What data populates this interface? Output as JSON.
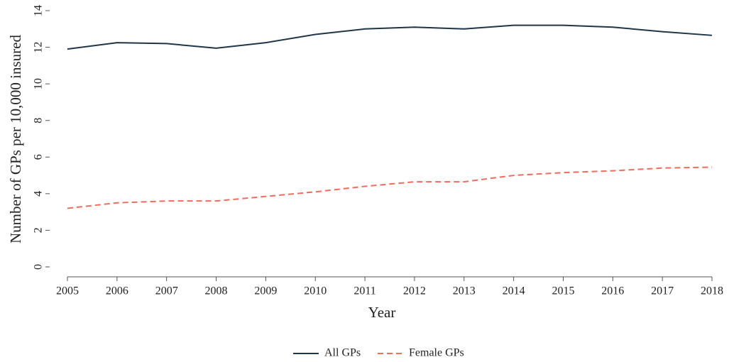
{
  "chart_data": {
    "type": "line",
    "x_label": "Year",
    "y_label": "Number of GPs per 10,000 insured",
    "x": [
      2005,
      2006,
      2007,
      2008,
      2009,
      2010,
      2011,
      2012,
      2013,
      2014,
      2015,
      2016,
      2017,
      2018
    ],
    "series": [
      {
        "name": "All GPs",
        "color": "#1e3648",
        "dash": false,
        "values": [
          11.9,
          12.25,
          12.2,
          11.95,
          12.25,
          12.7,
          13.0,
          13.1,
          13.0,
          13.2,
          13.2,
          13.1,
          12.85,
          12.65
        ]
      },
      {
        "name": "Female GPs",
        "color": "#f26b5b",
        "dash": true,
        "values": [
          3.2,
          3.5,
          3.6,
          3.6,
          3.85,
          4.1,
          4.4,
          4.65,
          4.65,
          5.0,
          5.15,
          5.25,
          5.4,
          5.45
        ]
      }
    ],
    "xlim": [
      2005,
      2018
    ],
    "xticks": [
      2005,
      2006,
      2007,
      2008,
      2009,
      2010,
      2011,
      2012,
      2013,
      2014,
      2015,
      2016,
      2017,
      2018
    ],
    "ylim": [
      0,
      14
    ],
    "yticks": [
      0,
      2,
      4,
      6,
      8,
      10,
      12,
      14
    ],
    "grid": false,
    "legend": "bottom"
  }
}
